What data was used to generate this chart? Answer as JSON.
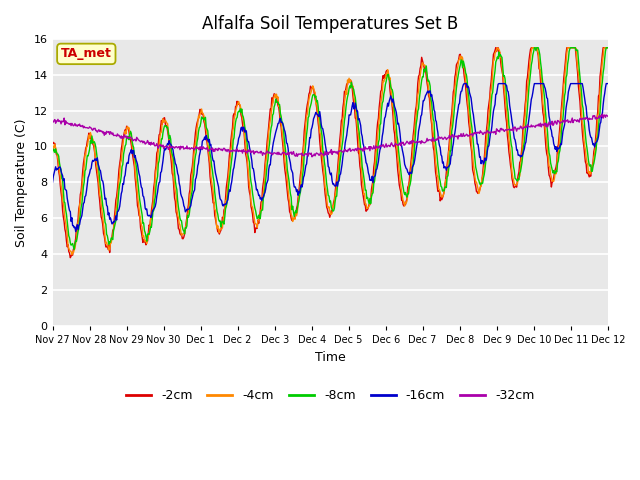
{
  "title": "Alfalfa Soil Temperatures Set B",
  "xlabel": "Time",
  "ylabel": "Soil Temperature (C)",
  "ylim": [
    0,
    16
  ],
  "yticks": [
    0,
    2,
    4,
    6,
    8,
    10,
    12,
    14,
    16
  ],
  "colors": {
    "neg2cm": "#dd0000",
    "neg4cm": "#ff8800",
    "neg8cm": "#00cc00",
    "neg16cm": "#0000cc",
    "neg32cm": "#aa00aa"
  },
  "legend_labels": [
    "-2cm",
    "-4cm",
    "-8cm",
    "-16cm",
    "-32cm"
  ],
  "ta_met_box_facecolor": "#ffffcc",
  "ta_met_text_color": "#cc0000",
  "ta_met_edge_color": "#aaaa00",
  "figure_facecolor": "#ffffff",
  "plot_bg_color": "#e8e8e8",
  "n_points": 720,
  "num_days": 15
}
